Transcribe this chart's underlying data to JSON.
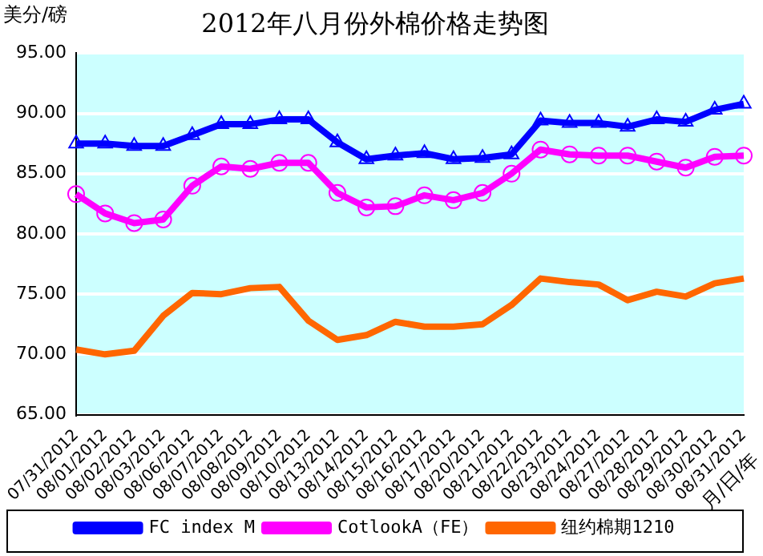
{
  "chart_data": {
    "type": "line",
    "title": "2012年八月份外棉价格走势图",
    "ylabel": "美分/磅",
    "xlabel": "月/日/年",
    "categories": [
      "07/31/2012",
      "08/01/2012",
      "08/02/2012",
      "08/03/2012",
      "08/06/2012",
      "08/07/2012",
      "08/08/2012",
      "08/09/2012",
      "08/10/2012",
      "08/13/2012",
      "08/14/2012",
      "08/15/2012",
      "08/16/2012",
      "08/17/2012",
      "08/20/2012",
      "08/21/2012",
      "08/22/2012",
      "08/23/2012",
      "08/24/2012",
      "08/27/2012",
      "08/28/2012",
      "08/29/2012",
      "08/30/2012",
      "08/31/2012"
    ],
    "series": [
      {
        "name": "FC index M",
        "color": "#0000ff",
        "marker": "triangle",
        "values": [
          87.5,
          87.5,
          87.3,
          87.3,
          88.2,
          89.1,
          89.1,
          89.5,
          89.5,
          87.6,
          86.2,
          86.5,
          86.7,
          86.2,
          86.3,
          86.6,
          89.4,
          89.2,
          89.2,
          88.9,
          89.5,
          89.3,
          90.3,
          90.8
        ]
      },
      {
        "name": "CotlookA（FE）",
        "color": "#ff00ff",
        "marker": "circle",
        "values": [
          83.3,
          81.7,
          80.9,
          81.2,
          84.0,
          85.6,
          85.4,
          85.9,
          85.9,
          83.4,
          82.2,
          82.3,
          83.2,
          82.8,
          83.4,
          85.0,
          87.0,
          86.6,
          86.5,
          86.5,
          86.0,
          85.5,
          86.4,
          86.5
        ]
      },
      {
        "name": "纽约棉期1210",
        "color": "#ff6600",
        "marker": "none",
        "values": [
          70.4,
          70.0,
          70.3,
          73.2,
          75.1,
          75.0,
          75.5,
          75.6,
          72.8,
          71.2,
          71.6,
          72.7,
          72.3,
          72.3,
          72.5,
          74.1,
          76.3,
          76.0,
          75.8,
          74.5,
          75.2,
          74.8,
          75.9,
          76.3
        ]
      }
    ],
    "ylim": [
      65,
      95
    ],
    "yticks": [
      {
        "value": 65,
        "label": "65.00"
      },
      {
        "value": 70,
        "label": "70.00"
      },
      {
        "value": 75,
        "label": "75.00"
      },
      {
        "value": 80,
        "label": "80.00"
      },
      {
        "value": 85,
        "label": "85.00"
      },
      {
        "value": 90,
        "label": "90.00"
      },
      {
        "value": 95,
        "label": "95.00"
      }
    ],
    "grid": "y",
    "legend": "bottom"
  }
}
